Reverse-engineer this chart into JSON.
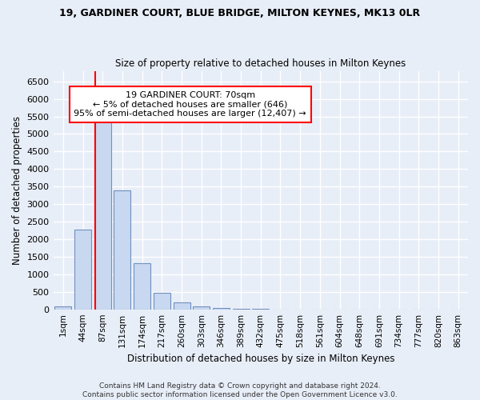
{
  "title1": "19, GARDINER COURT, BLUE BRIDGE, MILTON KEYNES, MK13 0LR",
  "title2": "Size of property relative to detached houses in Milton Keynes",
  "xlabel": "Distribution of detached houses by size in Milton Keynes",
  "ylabel": "Number of detached properties",
  "categories": [
    "1sqm",
    "44sqm",
    "87sqm",
    "131sqm",
    "174sqm",
    "217sqm",
    "260sqm",
    "303sqm",
    "346sqm",
    "389sqm",
    "432sqm",
    "475sqm",
    "518sqm",
    "561sqm",
    "604sqm",
    "648sqm",
    "691sqm",
    "734sqm",
    "777sqm",
    "820sqm",
    "863sqm"
  ],
  "values": [
    75,
    2280,
    5400,
    3400,
    1310,
    475,
    200,
    75,
    40,
    10,
    5,
    2,
    1,
    0,
    0,
    0,
    0,
    0,
    0,
    0,
    0
  ],
  "bar_color": "#c8d8f0",
  "bar_edge_color": "#7090c0",
  "annotation_line1": "19 GARDINER COURT: 70sqm",
  "annotation_line2": "← 5% of detached houses are smaller (646)",
  "annotation_line3": "95% of semi-detached houses are larger (12,407) →",
  "annotation_box_color": "white",
  "annotation_box_edge_color": "red",
  "vline_color": "red",
  "ylim": [
    0,
    6800
  ],
  "yticks": [
    0,
    500,
    1000,
    1500,
    2000,
    2500,
    3000,
    3500,
    4000,
    4500,
    5000,
    5500,
    6000,
    6500
  ],
  "footer1": "Contains HM Land Registry data © Crown copyright and database right 2024.",
  "footer2": "Contains public sector information licensed under the Open Government Licence v3.0.",
  "fig_bg_color": "#e8eef8",
  "plot_bg_color": "#e8eef8",
  "grid_color": "white"
}
